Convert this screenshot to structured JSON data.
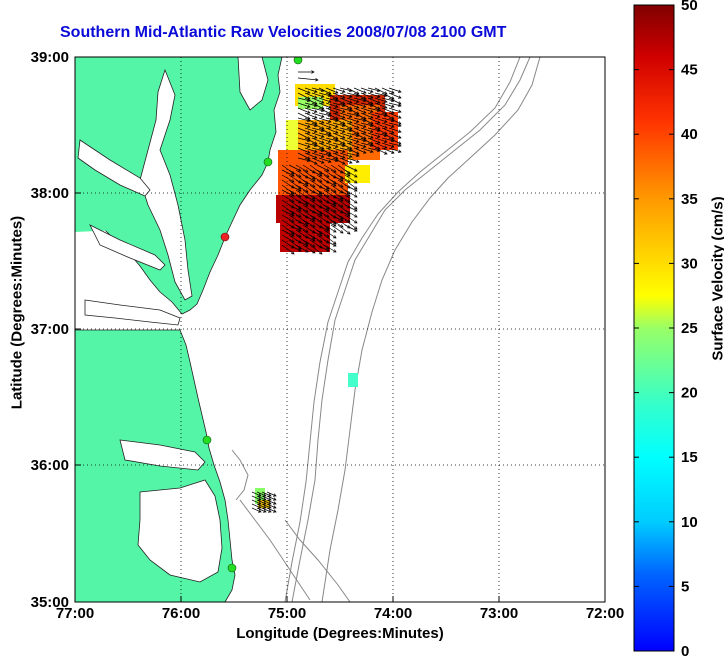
{
  "title": "Southern Mid-Atlantic Raw Velocities 2008/07/08 2100 GMT",
  "map": {
    "xlabel": "Longitude (Degrees:Minutes)",
    "ylabel": "Latitude (Degrees:Minutes)",
    "lon_range": [
      -77,
      -72
    ],
    "lat_range": [
      35,
      39
    ],
    "x_ticks": [
      "77:00",
      "76:00",
      "75:00",
      "74:00",
      "73:00",
      "72:00"
    ],
    "y_ticks": [
      "39:00",
      "38:00",
      "37:00",
      "36:00",
      "35:00"
    ],
    "grid": "dotted",
    "colors": {
      "land": "#55f5a8",
      "contour": "#888888",
      "title": "#0b0bd9"
    },
    "stations": [
      {
        "lon": -75.1,
        "lat": 38.97,
        "color": "green"
      },
      {
        "lon": -75.1,
        "lat": 38.22,
        "color": "green"
      },
      {
        "lon": -75.55,
        "lat": 37.7,
        "color": "red"
      },
      {
        "lon": -75.75,
        "lat": 36.2,
        "color": "green"
      },
      {
        "lon": -75.5,
        "lat": 35.25,
        "color": "green"
      }
    ]
  },
  "colorbar": {
    "label": "Surface Velocity (cm/s)",
    "min": 0,
    "max": 50,
    "ticks": [
      "0",
      "5",
      "10",
      "15",
      "20",
      "25",
      "30",
      "35",
      "40",
      "45",
      "50"
    ],
    "colormap": "jet"
  }
}
